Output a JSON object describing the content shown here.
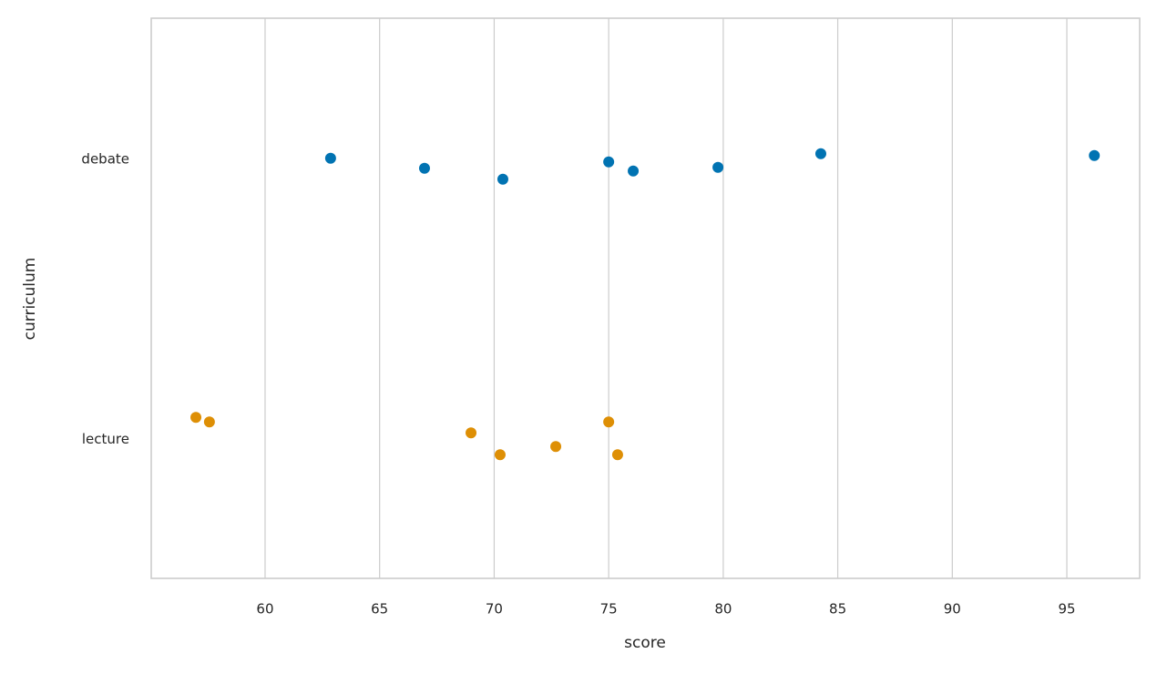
{
  "chart_data": {
    "type": "strip",
    "categories": [
      "debate",
      "lecture"
    ],
    "values": [
      [
        62.86,
        66.96,
        70.38,
        75.0,
        76.07,
        79.77,
        84.26,
        96.2
      ],
      [
        56.98,
        57.57,
        68.99,
        70.26,
        72.69,
        75.0,
        75.39
      ]
    ],
    "colors": [
      "#0173b2",
      "#de8f05"
    ],
    "xlim": [
      55.03,
      98.18
    ],
    "xticks": [
      60,
      65,
      70,
      75,
      80,
      85,
      90,
      95
    ],
    "xlabel": "score",
    "ylabel": "curriculum",
    "grid": true
  }
}
